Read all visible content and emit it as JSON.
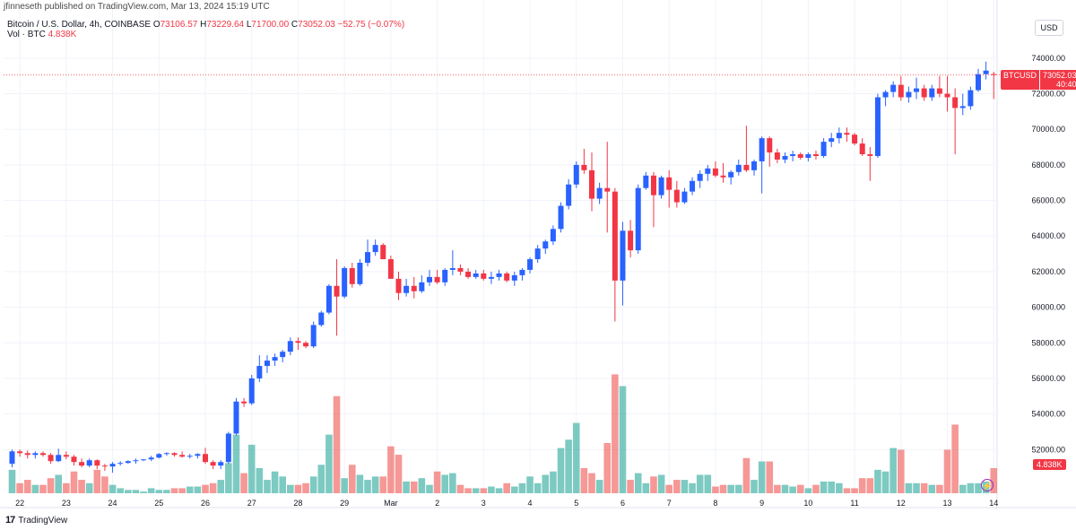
{
  "header": {
    "publisher": "jfinneseth published on TradingView.com, Mar 13, 2024 15:19 UTC",
    "symbol_line": "Bitcoin / U.S. Dollar, 4h, COINBASE",
    "open_label": "O",
    "open": "73106.57",
    "high_label": "H",
    "high": "73229.64",
    "low_label": "L",
    "low": "71700.00",
    "close_label": "C",
    "close": "73052.03",
    "change": "−52.75 (−0.07%)",
    "vol_label": "Vol · BTC",
    "vol_value": "4.838K"
  },
  "toolbar": {
    "currency": "USD"
  },
  "price_badge": {
    "symbol": "BTCUSD",
    "price": "73052.03",
    "countdown": "40:40"
  },
  "volume_badge": "4.838K",
  "branding": {
    "name": "TradingView",
    "mark": "17"
  },
  "colors": {
    "up": "#2962ff",
    "down": "#f23645",
    "vol_up": "#26a69a",
    "vol_down": "#ef5350",
    "grid": "#f0f3fa",
    "text": "#131722"
  },
  "chart_data": {
    "type": "candlestick",
    "ylim": [
      50000,
      75000
    ],
    "y_ticks": [
      "52000.00",
      "54000.00",
      "56000.00",
      "58000.00",
      "60000.00",
      "62000.00",
      "64000.00",
      "66000.00",
      "68000.00",
      "70000.00",
      "72000.00",
      "74000.00"
    ],
    "x_ticks": [
      {
        "label": "22",
        "index": 1
      },
      {
        "label": "23",
        "index": 7
      },
      {
        "label": "24",
        "index": 13
      },
      {
        "label": "25",
        "index": 19
      },
      {
        "label": "26",
        "index": 25
      },
      {
        "label": "27",
        "index": 31
      },
      {
        "label": "28",
        "index": 37
      },
      {
        "label": "29",
        "index": 43
      },
      {
        "label": "Mar",
        "index": 49
      },
      {
        "label": "2",
        "index": 55
      },
      {
        "label": "3",
        "index": 61
      },
      {
        "label": "4",
        "index": 67
      },
      {
        "label": "5",
        "index": 73
      },
      {
        "label": "6",
        "index": 79
      },
      {
        "label": "7",
        "index": 85
      },
      {
        "label": "8",
        "index": 91
      },
      {
        "label": "9",
        "index": 97
      },
      {
        "label": "10",
        "index": 103
      },
      {
        "label": "11",
        "index": 109
      },
      {
        "label": "12",
        "index": 115
      },
      {
        "label": "13",
        "index": 121
      },
      {
        "label": "14",
        "index": 127
      }
    ],
    "candles": [
      [
        51200,
        52000,
        51000,
        51900,
        1.4
      ],
      [
        51900,
        52000,
        51600,
        51800,
        0.6
      ],
      [
        51800,
        51950,
        51500,
        51700,
        0.8
      ],
      [
        51700,
        51900,
        51500,
        51800,
        0.5
      ],
      [
        51800,
        51900,
        51600,
        51700,
        0.5
      ],
      [
        51700,
        51800,
        51200,
        51350,
        0.9
      ],
      [
        51350,
        52050,
        51300,
        51700,
        1.1
      ],
      [
        51700,
        51900,
        51450,
        51600,
        0.6
      ],
      [
        51600,
        51700,
        51100,
        51300,
        1.3
      ],
      [
        51300,
        51500,
        51000,
        51100,
        0.8
      ],
      [
        51100,
        51500,
        51000,
        51400,
        0.6
      ],
      [
        51400,
        51450,
        50900,
        51100,
        1.4
      ],
      [
        51100,
        51200,
        50800,
        51050,
        1.0
      ],
      [
        51050,
        51300,
        50700,
        51200,
        0.5
      ],
      [
        51200,
        51350,
        51100,
        51250,
        0.3
      ],
      [
        51250,
        51400,
        51200,
        51350,
        0.2
      ],
      [
        51350,
        51500,
        51200,
        51400,
        0.2
      ],
      [
        51400,
        51450,
        51350,
        51450,
        0.1
      ],
      [
        51450,
        51650,
        51350,
        51550,
        0.3
      ],
      [
        51550,
        51800,
        51500,
        51750,
        0.2
      ],
      [
        51750,
        51850,
        51650,
        51800,
        0.2
      ],
      [
        51800,
        51850,
        51600,
        51700,
        0.3
      ],
      [
        51700,
        51900,
        51550,
        51600,
        0.3
      ],
      [
        51600,
        51750,
        51500,
        51650,
        0.4
      ],
      [
        51650,
        51800,
        51500,
        51750,
        0.4
      ],
      [
        51750,
        52100,
        51200,
        51300,
        0.5
      ],
      [
        51300,
        51400,
        50900,
        51100,
        0.6
      ],
      [
        51100,
        51400,
        50900,
        51300,
        0.8
      ],
      [
        51300,
        53000,
        51200,
        52900,
        1.8
      ],
      [
        52900,
        54900,
        52800,
        54700,
        3.5
      ],
      [
        54700,
        54900,
        54400,
        54600,
        1.2
      ],
      [
        54600,
        56200,
        54500,
        56000,
        2.9
      ],
      [
        56000,
        57300,
        55800,
        56700,
        1.5
      ],
      [
        56700,
        57300,
        56300,
        57000,
        0.8
      ],
      [
        57000,
        57400,
        56700,
        57200,
        1.3
      ],
      [
        57200,
        57600,
        56900,
        57500,
        1.0
      ],
      [
        57500,
        58300,
        57300,
        58100,
        0.5
      ],
      [
        58100,
        58300,
        57600,
        58000,
        0.5
      ],
      [
        58000,
        58100,
        57700,
        57800,
        0.6
      ],
      [
        57800,
        59200,
        57700,
        59000,
        1.0
      ],
      [
        59000,
        59800,
        58900,
        59700,
        1.7
      ],
      [
        59700,
        61300,
        59600,
        61200,
        3.5
      ],
      [
        61200,
        62700,
        58400,
        60600,
        5.8
      ],
      [
        60600,
        62300,
        60500,
        62200,
        0.9
      ],
      [
        62200,
        62500,
        61100,
        61300,
        1.7
      ],
      [
        61300,
        62700,
        61200,
        62500,
        1.1
      ],
      [
        62500,
        63800,
        62300,
        63100,
        0.8
      ],
      [
        63100,
        63800,
        62900,
        63500,
        1.0
      ],
      [
        63500,
        63600,
        62900,
        62700,
        1.0
      ],
      [
        62700,
        62900,
        61600,
        61600,
        2.8
      ],
      [
        61600,
        62000,
        60400,
        60800,
        2.3
      ],
      [
        60800,
        61600,
        60600,
        61200,
        0.7
      ],
      [
        61200,
        61700,
        60500,
        60900,
        0.7
      ],
      [
        60900,
        61800,
        60800,
        61400,
        0.9
      ],
      [
        61400,
        62100,
        61200,
        61700,
        0.5
      ],
      [
        61700,
        62100,
        61300,
        61400,
        1.3
      ],
      [
        61400,
        62200,
        61200,
        62100,
        1.1
      ],
      [
        62100,
        63200,
        61800,
        62200,
        1.2
      ],
      [
        62200,
        62400,
        61800,
        62000,
        0.5
      ],
      [
        62000,
        62200,
        61600,
        61700,
        0.3
      ],
      [
        61700,
        62100,
        61600,
        61900,
        0.3
      ],
      [
        61900,
        62100,
        61500,
        61600,
        0.3
      ],
      [
        61600,
        62000,
        61300,
        61700,
        0.4
      ],
      [
        61700,
        62100,
        61500,
        61900,
        0.3
      ],
      [
        61900,
        62000,
        61400,
        61500,
        0.6
      ],
      [
        61500,
        62000,
        61200,
        61800,
        0.4
      ],
      [
        61800,
        62200,
        61500,
        62100,
        0.6
      ],
      [
        62100,
        62800,
        61900,
        62700,
        1.0
      ],
      [
        62700,
        63500,
        62500,
        63300,
        0.6
      ],
      [
        63300,
        63800,
        63000,
        63700,
        1.1
      ],
      [
        63700,
        64600,
        63500,
        64400,
        1.3
      ],
      [
        64400,
        65900,
        64200,
        65700,
        2.7
      ],
      [
        65700,
        67200,
        65500,
        66900,
        3.2
      ],
      [
        66900,
        68200,
        66700,
        68000,
        4.2
      ],
      [
        68000,
        68900,
        67500,
        67700,
        1.5
      ],
      [
        67700,
        68700,
        65400,
        66100,
        1.2
      ],
      [
        66100,
        67000,
        65800,
        66700,
        0.8
      ],
      [
        66700,
        69300,
        64200,
        66500,
        3.0
      ],
      [
        66500,
        66700,
        59200,
        61500,
        7.1
      ],
      [
        61500,
        64800,
        60100,
        64300,
        6.4
      ],
      [
        64300,
        64900,
        62800,
        63200,
        0.8
      ],
      [
        63200,
        66900,
        63000,
        66700,
        1.2
      ],
      [
        66700,
        67600,
        66600,
        67400,
        0.6
      ],
      [
        67400,
        67600,
        64500,
        66300,
        1.0
      ],
      [
        66300,
        67400,
        66100,
        67300,
        1.1
      ],
      [
        67300,
        67700,
        65600,
        66600,
        0.5
      ],
      [
        66600,
        67100,
        65600,
        65900,
        0.8
      ],
      [
        65900,
        66700,
        65800,
        66500,
        0.8
      ],
      [
        66500,
        67300,
        66300,
        67100,
        0.6
      ],
      [
        67100,
        67700,
        66700,
        67500,
        1.1
      ],
      [
        67500,
        68000,
        67100,
        67800,
        1.1
      ],
      [
        67800,
        68200,
        67300,
        67400,
        0.4
      ],
      [
        67400,
        68100,
        67000,
        67300,
        0.5
      ],
      [
        67300,
        67700,
        66900,
        67600,
        0.5
      ],
      [
        67600,
        68300,
        67400,
        68000,
        0.5
      ],
      [
        68000,
        70200,
        67600,
        67700,
        2.1
      ],
      [
        67700,
        68300,
        67400,
        68200,
        0.8
      ],
      [
        68200,
        69600,
        66400,
        69500,
        1.9
      ],
      [
        69500,
        69600,
        67900,
        68700,
        1.9
      ],
      [
        68700,
        68900,
        68100,
        68300,
        0.5
      ],
      [
        68300,
        68700,
        68100,
        68500,
        0.5
      ],
      [
        68500,
        68800,
        68200,
        68600,
        0.4
      ],
      [
        68600,
        68700,
        68300,
        68400,
        0.5
      ],
      [
        68400,
        68700,
        68200,
        68600,
        0.3
      ],
      [
        68600,
        68800,
        68300,
        68500,
        0.5
      ],
      [
        68500,
        69500,
        68400,
        69300,
        0.7
      ],
      [
        69300,
        69800,
        69000,
        69500,
        0.7
      ],
      [
        69500,
        70100,
        69200,
        69800,
        0.6
      ],
      [
        69800,
        70100,
        69300,
        69700,
        0.3
      ],
      [
        69700,
        69800,
        69100,
        69200,
        0.3
      ],
      [
        69200,
        69500,
        68500,
        68600,
        0.9
      ],
      [
        68600,
        69000,
        67100,
        68500,
        0.9
      ],
      [
        68500,
        72000,
        68400,
        71800,
        1.4
      ],
      [
        71800,
        72200,
        71300,
        72100,
        1.3
      ],
      [
        72100,
        72700,
        71800,
        72500,
        2.7
      ],
      [
        72500,
        73000,
        71600,
        71800,
        2.6
      ],
      [
        71800,
        72400,
        71500,
        72100,
        0.6
      ],
      [
        72100,
        72900,
        71700,
        72300,
        0.6
      ],
      [
        72300,
        72500,
        71600,
        71800,
        0.6
      ],
      [
        71800,
        72500,
        71600,
        72300,
        0.5
      ],
      [
        72300,
        73000,
        71800,
        72000,
        0.5
      ],
      [
        72000,
        73000,
        71000,
        71800,
        2.6
      ],
      [
        71800,
        72300,
        68600,
        71200,
        4.1
      ],
      [
        71200,
        72000,
        70800,
        71300,
        0.5
      ],
      [
        71300,
        72400,
        71100,
        72200,
        0.6
      ],
      [
        72200,
        73400,
        72100,
        73100,
        0.6
      ],
      [
        73100,
        73800,
        72800,
        73300,
        0.7
      ],
      [
        73107,
        73230,
        71700,
        73052,
        1.5
      ]
    ]
  }
}
